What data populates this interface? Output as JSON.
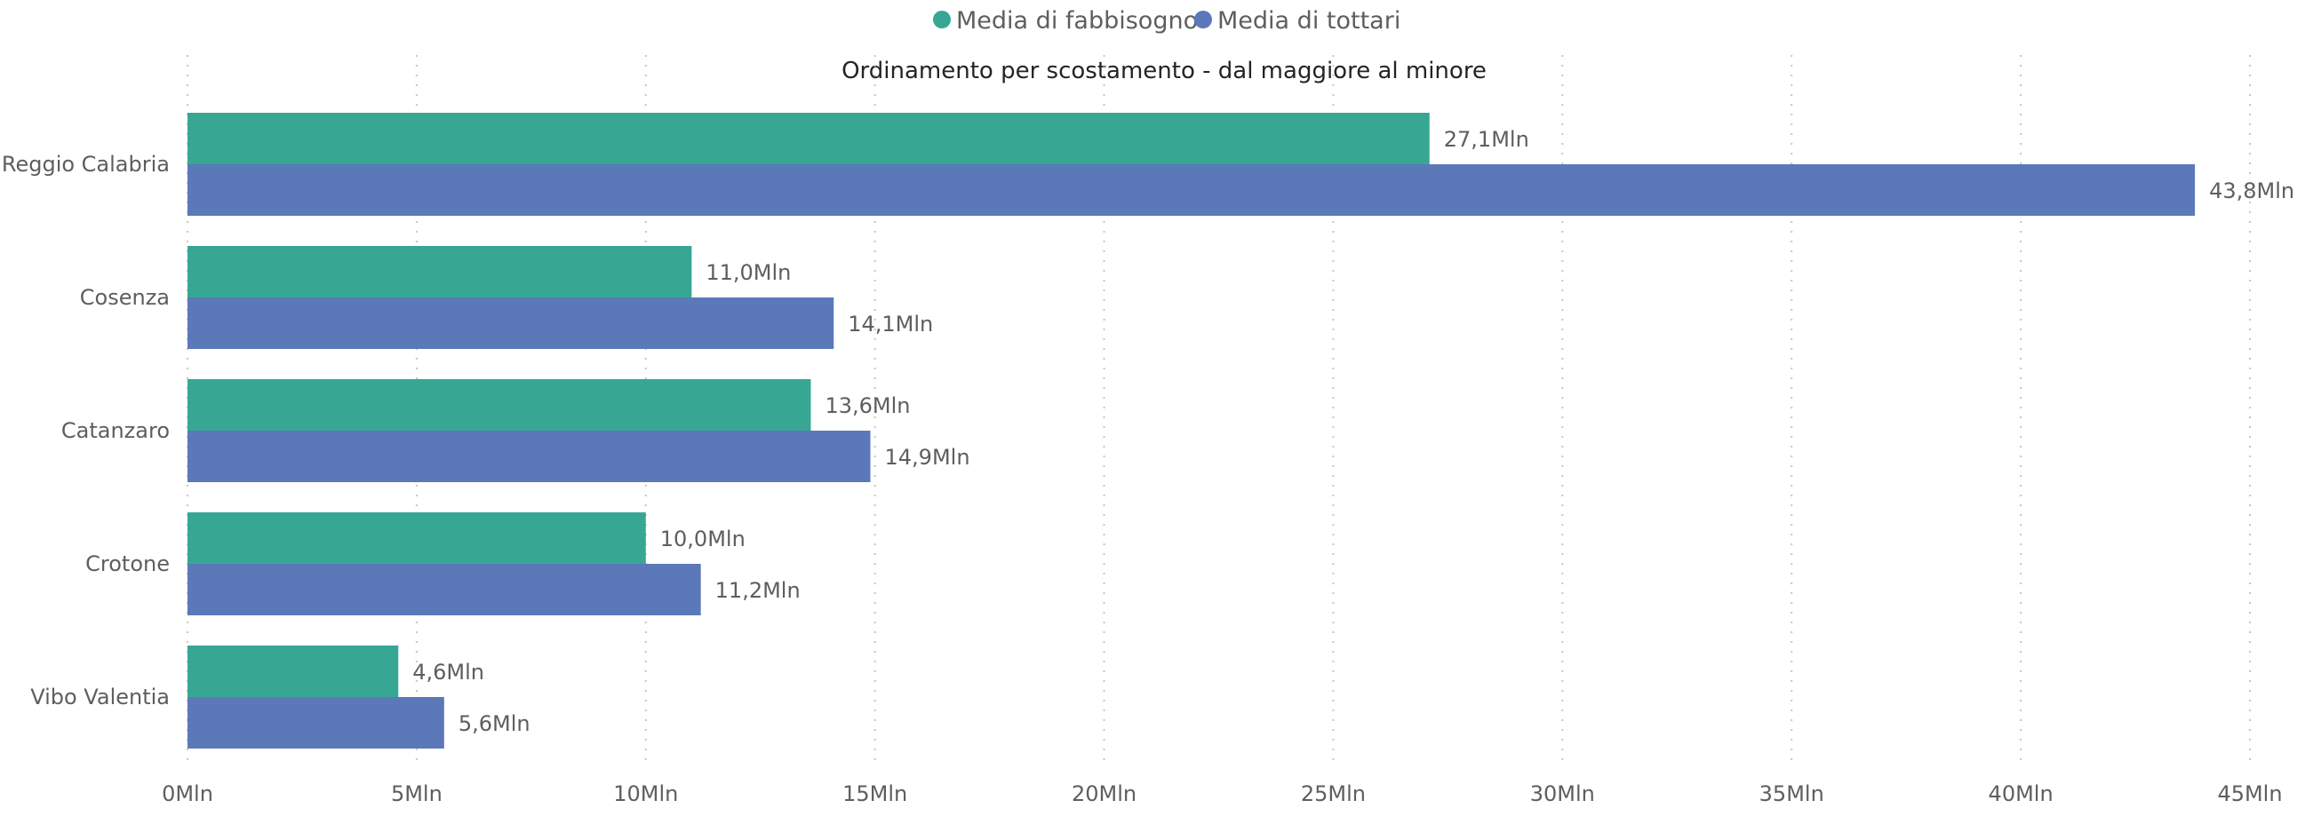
{
  "chart_data": {
    "type": "bar",
    "orientation": "horizontal",
    "title": "Ordinamento per scostamento - dal maggiore al minore",
    "categories": [
      "Reggio Calabria",
      "Cosenza",
      "Catanzaro",
      "Crotone",
      "Vibo Valentia"
    ],
    "series": [
      {
        "name": "Media di fabbisogno",
        "color": "#37a794",
        "values": [
          27.1,
          11.0,
          13.6,
          10.0,
          4.6
        ],
        "labels": [
          "27,1Mln",
          "11,0Mln",
          "13,6Mln",
          "10,0Mln",
          "4,6Mln"
        ]
      },
      {
        "name": "Media di tottari",
        "color": "#5b78b9",
        "values": [
          43.8,
          14.1,
          14.9,
          11.2,
          5.6
        ],
        "labels": [
          "43,8Mln",
          "14,1Mln",
          "14,9Mln",
          "11,2Mln",
          "5,6Mln"
        ]
      }
    ],
    "xlim": [
      0,
      45
    ],
    "x_ticks": [
      0,
      5,
      10,
      15,
      20,
      25,
      30,
      35,
      40,
      45
    ],
    "x_tick_labels": [
      "0Mln",
      "5Mln",
      "10Mln",
      "15Mln",
      "20Mln",
      "25Mln",
      "30Mln",
      "35Mln",
      "40Mln",
      "45Mln"
    ],
    "legend_position": "top-center",
    "grid": true
  }
}
